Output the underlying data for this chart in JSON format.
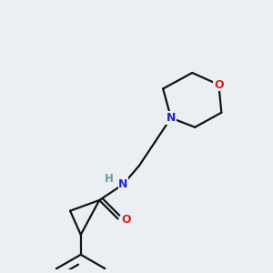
{
  "bg_color": "#eaeff3",
  "bond_color": "#111111",
  "N_color": "#2020dd",
  "O_color": "#dd2020",
  "H_color": "#6a9a9a",
  "line_width": 1.6,
  "fig_size": [
    3.0,
    3.0
  ],
  "dpi": 100,
  "xlim": [
    0,
    10
  ],
  "ylim": [
    0,
    10
  ]
}
